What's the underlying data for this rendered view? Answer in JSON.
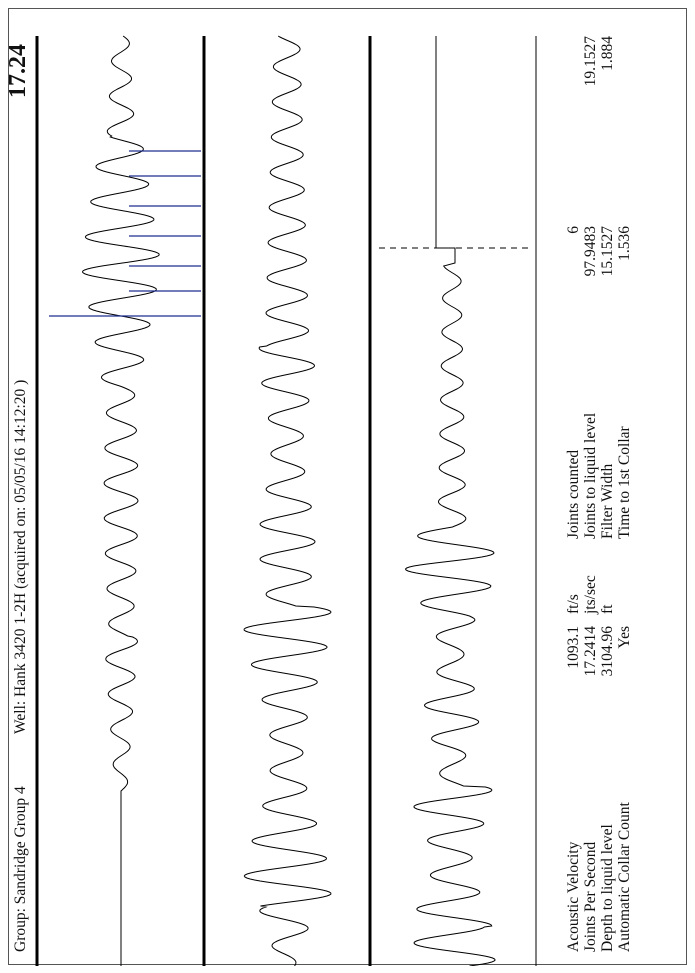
{
  "header": {
    "group_text": "Group: Sandridge Group 4",
    "well_text": "Well: Hank 3420 1-2H (acquired on: 05/05/16 14:12:20 )",
    "big_number": "17.24"
  },
  "stats_left": [
    {
      "label": "Acoustic Velocity",
      "value": "1093.1",
      "unit": "ft/s"
    },
    {
      "label": "Joints Per Second",
      "value": "17.2414",
      "unit": "jts/sec"
    },
    {
      "label": "Depth to liquid level",
      "value": "3104.96",
      "unit": "ft"
    },
    {
      "label": "Automatic Collar Count",
      "value": "Yes",
      "unit": ""
    }
  ],
  "stats_right": [
    {
      "label": "Joints counted",
      "value": "6",
      "extra": ""
    },
    {
      "label": "Joints to liquid level",
      "value": "97.9483",
      "extra": "19.1527"
    },
    {
      "label": "Filter Width",
      "value": "15.1527",
      "extra": "1.884"
    },
    {
      "label": "Time to 1st Collar",
      "value": "1.536",
      "extra": ""
    }
  ],
  "colors": {
    "trace": "#000000",
    "collar_markers": "#1f2f8f",
    "frame": "#555555"
  },
  "chart_data": {
    "type": "line",
    "panels": [
      {
        "name": "raw",
        "traces_description": "acoustic trace, flat then oscillating",
        "collar_markers_count": 7
      },
      {
        "name": "filtered",
        "traces_description": "band-pass filtered collar signal"
      },
      {
        "name": "liquid-level",
        "traces_description": "liquid level echo with dashed marker"
      }
    ],
    "grid": false
  }
}
